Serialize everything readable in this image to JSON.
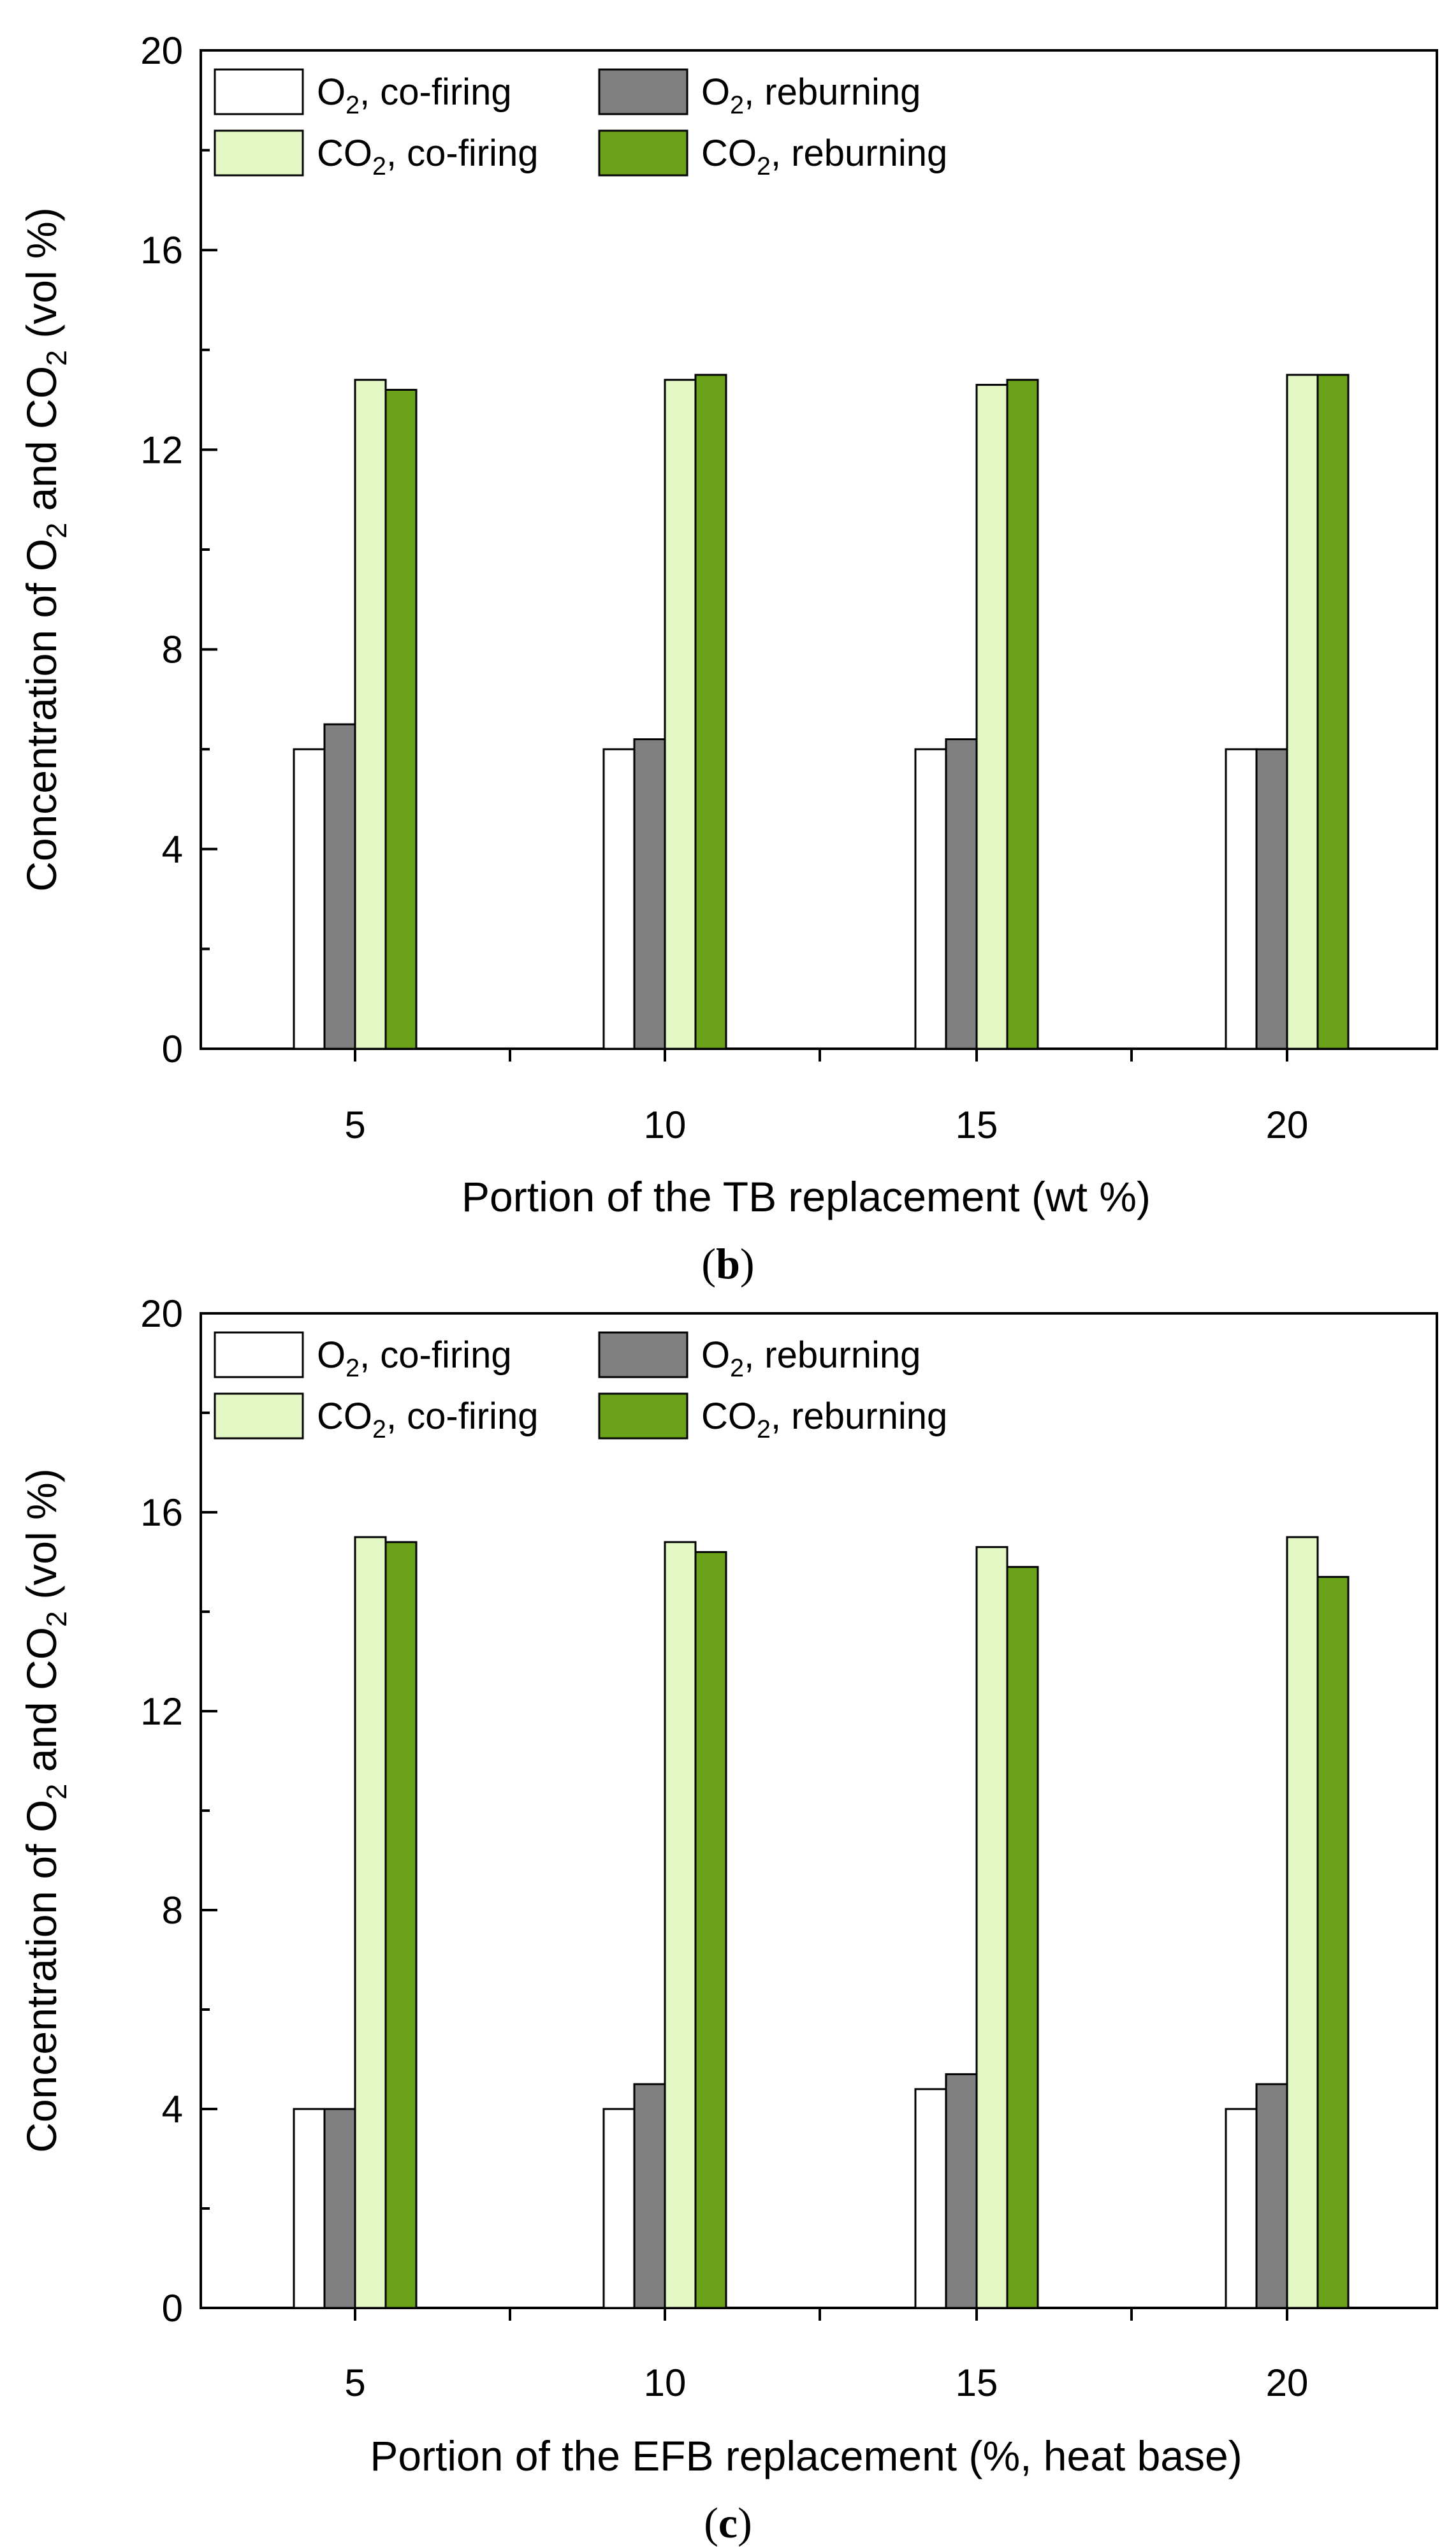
{
  "chart_data": [
    {
      "type": "bar",
      "panel_label": "(b)",
      "panel_letter": "b",
      "categories": [
        "5",
        "10",
        "15",
        "20"
      ],
      "xlabel": "Portion of the TB replacement (wt %)",
      "ylabel_parts": [
        "Concentration of O",
        "2",
        " and CO",
        "2",
        " (vol %)"
      ],
      "ylim": [
        0,
        20
      ],
      "yticks": [
        "0",
        "4",
        "8",
        "12",
        "16",
        "20"
      ],
      "legend_position": "top-left",
      "series": [
        {
          "name": "O2, co-firing",
          "legend_main": "O",
          "legend_sub": "2",
          "legend_rest": ", co-firing",
          "color": "#ffffff",
          "values": [
            6.0,
            6.0,
            6.0,
            6.0
          ]
        },
        {
          "name": "O2, reburning",
          "legend_main": "O",
          "legend_sub": "2",
          "legend_rest": ", reburning",
          "color": "#808080",
          "values": [
            6.5,
            6.2,
            6.2,
            6.0
          ]
        },
        {
          "name": "CO2, co-firing",
          "legend_main": "CO",
          "legend_sub": "2",
          "legend_rest": ", co-firing",
          "color": "#e3f8c4",
          "values": [
            13.4,
            13.4,
            13.3,
            13.5
          ]
        },
        {
          "name": "CO2, reburning",
          "legend_main": "CO",
          "legend_sub": "2",
          "legend_rest": ", reburning",
          "color": "#6aa319",
          "values": [
            13.2,
            13.5,
            13.4,
            13.5
          ]
        }
      ]
    },
    {
      "type": "bar",
      "panel_label": "(c)",
      "panel_letter": "c",
      "categories": [
        "5",
        "10",
        "15",
        "20"
      ],
      "xlabel": "Portion of the EFB replacement (%, heat base)",
      "ylabel_parts": [
        "Concentration of O",
        "2",
        " and CO",
        "2",
        " (vol %)"
      ],
      "ylim": [
        0,
        20
      ],
      "yticks": [
        "0",
        "4",
        "8",
        "12",
        "16",
        "20"
      ],
      "legend_position": "top-left",
      "series": [
        {
          "name": "O2, co-firing",
          "legend_main": "O",
          "legend_sub": "2",
          "legend_rest": ", co-firing",
          "color": "#ffffff",
          "values": [
            4.0,
            4.0,
            4.4,
            4.0
          ]
        },
        {
          "name": "O2, reburning",
          "legend_main": "O",
          "legend_sub": "2",
          "legend_rest": ", reburning",
          "color": "#808080",
          "values": [
            4.0,
            4.5,
            4.7,
            4.5
          ]
        },
        {
          "name": "CO2, co-firing",
          "legend_main": "CO",
          "legend_sub": "2",
          "legend_rest": ", co-firing",
          "color": "#e3f8c4",
          "values": [
            15.5,
            15.4,
            15.3,
            15.5
          ]
        },
        {
          "name": "CO2, reburning",
          "legend_main": "CO",
          "legend_sub": "2",
          "legend_rest": ", reburning",
          "color": "#6aa319",
          "values": [
            15.4,
            15.2,
            14.9,
            14.7
          ]
        }
      ]
    }
  ]
}
